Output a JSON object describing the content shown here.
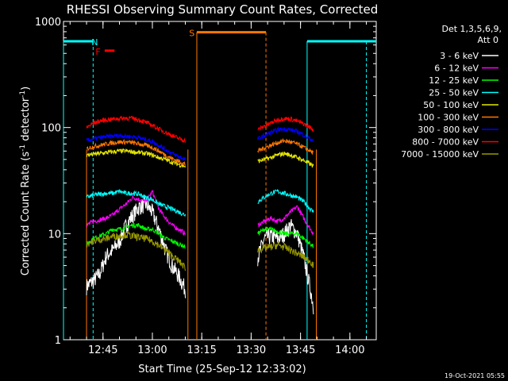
{
  "chart_data": {
    "type": "line",
    "title": "RHESSI Observing Summary Count Rates, Corrected",
    "xlabel": "Start Time (25-Sep-12 12:33:02)",
    "ylabel_main": "Corrected Count Rate (s",
    "ylabel_sup1": "-1",
    "ylabel_mid": " detector",
    "ylabel_sup2": "-1",
    "ylabel_end": ")",
    "y_scale": "log",
    "ylim": [
      1,
      1000
    ],
    "y_ticks": [
      {
        "value": 1,
        "label": "1"
      },
      {
        "value": 10,
        "label": "10"
      },
      {
        "value": 100,
        "label": "100"
      },
      {
        "value": 1000,
        "label": "1000"
      }
    ],
    "xlim_minutes": [
      0,
      95
    ],
    "x_ticks": [
      {
        "t": 12,
        "label": "12:45"
      },
      {
        "t": 27,
        "label": "13:00"
      },
      {
        "t": 42,
        "label": "13:15"
      },
      {
        "t": 57,
        "label": "13:30"
      },
      {
        "t": 72,
        "label": "13:45"
      },
      {
        "t": 87,
        "label": "14:00"
      }
    ],
    "legend_header": [
      "Det 1,3,5,6,9,",
      "Att 0"
    ],
    "legend_position": "right",
    "series": [
      {
        "name": "3 - 6 keV",
        "color": "#ffffff",
        "seg1": [
          [
            7,
            3.2
          ],
          [
            9,
            3.6
          ],
          [
            11,
            4.2
          ],
          [
            13,
            6.2
          ],
          [
            15,
            7
          ],
          [
            17,
            8.5
          ],
          [
            19,
            12
          ],
          [
            21,
            15
          ],
          [
            23,
            18
          ],
          [
            25,
            19
          ],
          [
            27,
            16
          ],
          [
            29,
            11
          ],
          [
            31,
            7
          ],
          [
            33,
            5
          ],
          [
            35,
            4
          ],
          [
            37,
            3
          ]
        ],
        "seg2": [
          [
            59,
            6
          ],
          [
            61,
            9
          ],
          [
            63,
            9.5
          ],
          [
            65,
            9
          ],
          [
            67,
            10
          ],
          [
            69,
            12
          ],
          [
            71,
            10
          ],
          [
            73,
            6
          ],
          [
            75,
            3
          ],
          [
            76,
            2
          ]
        ]
      },
      {
        "name": "6 - 12 keV",
        "color": "#ff00ff",
        "seg1": [
          [
            7,
            12
          ],
          [
            9,
            13
          ],
          [
            11,
            13.5
          ],
          [
            13,
            14
          ],
          [
            15,
            15
          ],
          [
            17,
            17
          ],
          [
            19,
            19
          ],
          [
            21,
            22
          ],
          [
            23,
            21
          ],
          [
            25,
            20
          ],
          [
            27,
            25
          ],
          [
            29,
            17
          ],
          [
            31,
            14
          ],
          [
            33,
            12
          ],
          [
            35,
            11
          ],
          [
            37,
            10
          ]
        ],
        "seg2": [
          [
            59,
            12
          ],
          [
            61,
            13
          ],
          [
            63,
            14
          ],
          [
            65,
            13
          ],
          [
            67,
            14
          ],
          [
            69,
            16
          ],
          [
            71,
            18
          ],
          [
            73,
            14
          ],
          [
            75,
            11
          ],
          [
            76,
            10
          ]
        ]
      },
      {
        "name": "12 - 25 keV",
        "color": "#00ff00",
        "seg1": [
          [
            7,
            8
          ],
          [
            9,
            9
          ],
          [
            11,
            9.5
          ],
          [
            13,
            10
          ],
          [
            15,
            11
          ],
          [
            17,
            11
          ],
          [
            19,
            11.5
          ],
          [
            21,
            12
          ],
          [
            23,
            12
          ],
          [
            25,
            11
          ],
          [
            27,
            11
          ],
          [
            29,
            10
          ],
          [
            31,
            9
          ],
          [
            33,
            8.5
          ],
          [
            35,
            8
          ],
          [
            37,
            7.5
          ]
        ],
        "seg2": [
          [
            59,
            10
          ],
          [
            61,
            11
          ],
          [
            63,
            11
          ],
          [
            65,
            10.5
          ],
          [
            67,
            10
          ],
          [
            69,
            10
          ],
          [
            71,
            10
          ],
          [
            73,
            9
          ],
          [
            75,
            8
          ],
          [
            76,
            7.5
          ]
        ]
      },
      {
        "name": "25 - 50 keV",
        "color": "#00ffff",
        "seg1": [
          [
            7,
            22
          ],
          [
            9,
            23
          ],
          [
            11,
            23.5
          ],
          [
            13,
            24
          ],
          [
            15,
            24
          ],
          [
            17,
            25
          ],
          [
            19,
            24
          ],
          [
            21,
            24
          ],
          [
            23,
            23.5
          ],
          [
            25,
            22
          ],
          [
            27,
            21
          ],
          [
            29,
            19
          ],
          [
            31,
            18
          ],
          [
            33,
            17
          ],
          [
            35,
            16
          ],
          [
            37,
            15
          ]
        ],
        "seg2": [
          [
            59,
            20
          ],
          [
            61,
            22
          ],
          [
            63,
            24
          ],
          [
            65,
            25
          ],
          [
            67,
            24
          ],
          [
            69,
            23
          ],
          [
            71,
            22
          ],
          [
            73,
            20
          ],
          [
            75,
            17
          ],
          [
            76,
            16
          ]
        ]
      },
      {
        "name": "50 - 100 keV",
        "color": "#e6e600",
        "seg1": [
          [
            7,
            55
          ],
          [
            9,
            56
          ],
          [
            11,
            57
          ],
          [
            13,
            58
          ],
          [
            15,
            59
          ],
          [
            17,
            60
          ],
          [
            19,
            60
          ],
          [
            21,
            59
          ],
          [
            23,
            58
          ],
          [
            25,
            57
          ],
          [
            27,
            55
          ],
          [
            29,
            52
          ],
          [
            31,
            50
          ],
          [
            33,
            47
          ],
          [
            35,
            45
          ],
          [
            37,
            43
          ]
        ],
        "seg2": [
          [
            59,
            48
          ],
          [
            61,
            50
          ],
          [
            63,
            52
          ],
          [
            65,
            55
          ],
          [
            67,
            57
          ],
          [
            69,
            55
          ],
          [
            71,
            52
          ],
          [
            73,
            49
          ],
          [
            75,
            45
          ],
          [
            76,
            43
          ]
        ]
      },
      {
        "name": "100 - 300 keV",
        "color": "#ff7700",
        "seg1": [
          [
            7,
            63
          ],
          [
            9,
            66
          ],
          [
            11,
            68
          ],
          [
            13,
            70
          ],
          [
            15,
            72
          ],
          [
            17,
            73
          ],
          [
            19,
            73
          ],
          [
            21,
            72
          ],
          [
            23,
            70
          ],
          [
            25,
            68
          ],
          [
            27,
            65
          ],
          [
            29,
            60
          ],
          [
            31,
            55
          ],
          [
            33,
            51
          ],
          [
            35,
            48
          ],
          [
            37,
            45
          ]
        ],
        "seg2": [
          [
            59,
            60
          ],
          [
            61,
            64
          ],
          [
            63,
            68
          ],
          [
            65,
            72
          ],
          [
            67,
            75
          ],
          [
            69,
            73
          ],
          [
            71,
            70
          ],
          [
            73,
            65
          ],
          [
            75,
            60
          ],
          [
            76,
            57
          ]
        ]
      },
      {
        "name": "300 - 800 keV",
        "color": "#0000ff",
        "seg1": [
          [
            7,
            75
          ],
          [
            9,
            78
          ],
          [
            11,
            80
          ],
          [
            13,
            82
          ],
          [
            15,
            83
          ],
          [
            17,
            84
          ],
          [
            19,
            83
          ],
          [
            21,
            82
          ],
          [
            23,
            80
          ],
          [
            25,
            77
          ],
          [
            27,
            74
          ],
          [
            29,
            68
          ],
          [
            31,
            62
          ],
          [
            33,
            57
          ],
          [
            35,
            53
          ],
          [
            37,
            50
          ]
        ],
        "seg2": [
          [
            59,
            78
          ],
          [
            61,
            84
          ],
          [
            63,
            90
          ],
          [
            65,
            95
          ],
          [
            67,
            97
          ],
          [
            69,
            95
          ],
          [
            71,
            92
          ],
          [
            73,
            85
          ],
          [
            75,
            78
          ],
          [
            76,
            75
          ]
        ]
      },
      {
        "name": "800 - 7000 keV",
        "color": "#ff0000",
        "seg1": [
          [
            7,
            100
          ],
          [
            9,
            110
          ],
          [
            11,
            115
          ],
          [
            13,
            118
          ],
          [
            15,
            120
          ],
          [
            17,
            122
          ],
          [
            19,
            123
          ],
          [
            21,
            122
          ],
          [
            23,
            118
          ],
          [
            25,
            112
          ],
          [
            27,
            105
          ],
          [
            29,
            97
          ],
          [
            31,
            90
          ],
          [
            33,
            84
          ],
          [
            35,
            79
          ],
          [
            37,
            75
          ]
        ],
        "seg2": [
          [
            59,
            95
          ],
          [
            61,
            103
          ],
          [
            63,
            110
          ],
          [
            65,
            118
          ],
          [
            67,
            122
          ],
          [
            69,
            120
          ],
          [
            71,
            115
          ],
          [
            73,
            108
          ],
          [
            75,
            100
          ],
          [
            76,
            95
          ]
        ]
      },
      {
        "name": "7000 - 15000 keV",
        "color": "#999900",
        "seg1": [
          [
            7,
            8
          ],
          [
            9,
            8.5
          ],
          [
            11,
            8.8
          ],
          [
            13,
            9
          ],
          [
            15,
            9.5
          ],
          [
            17,
            9.5
          ],
          [
            19,
            9.8
          ],
          [
            21,
            9.5
          ],
          [
            23,
            9.2
          ],
          [
            25,
            9
          ],
          [
            27,
            8.5
          ],
          [
            29,
            7.8
          ],
          [
            31,
            7
          ],
          [
            33,
            6.2
          ],
          [
            35,
            5.5
          ],
          [
            37,
            4.8
          ]
        ],
        "seg2": [
          [
            59,
            7
          ],
          [
            61,
            7.3
          ],
          [
            63,
            7.5
          ],
          [
            65,
            7.8
          ],
          [
            67,
            7.5
          ],
          [
            69,
            7
          ],
          [
            71,
            6.5
          ],
          [
            73,
            6
          ],
          [
            75,
            5.5
          ],
          [
            76,
            5
          ]
        ]
      }
    ],
    "flag_bars": [
      {
        "label": "",
        "color": "#00ffff",
        "y": 650,
        "t_start": 0,
        "t_end": 9
      },
      {
        "label": "N",
        "color": "#00ffff",
        "y": 650,
        "t_start": 9,
        "t_end": 9,
        "label_at": 9.5
      },
      {
        "label": "",
        "color": "#00ffff",
        "y": 650,
        "t_start": 74,
        "t_end": 95
      },
      {
        "label": "F",
        "color": "#ff0000",
        "y": 530,
        "t_start": 12.5,
        "t_end": 15.5,
        "label_at": 10.5
      },
      {
        "label": "S",
        "color": "#ff7700",
        "y": 790,
        "t_start": 40.5,
        "t_end": 61.5,
        "label_at": 39
      }
    ],
    "vertical_lines": [
      {
        "t": 7,
        "color": "#ff7700",
        "style": "solid"
      },
      {
        "t": 9,
        "color": "#00ffff",
        "style": "dashed"
      },
      {
        "t": 37.8,
        "color": "#ff7700",
        "style": "solid"
      },
      {
        "t": 40.5,
        "color": "#ff7700",
        "style": "solid"
      },
      {
        "t": 61.5,
        "color": "#ff7700",
        "style": "dashed"
      },
      {
        "t": 74,
        "color": "#00ffff",
        "style": "solid"
      },
      {
        "t": 76.8,
        "color": "#ff7700",
        "style": "solid"
      },
      {
        "t": 92,
        "color": "#00ffff",
        "style": "dashed"
      },
      {
        "t": 0,
        "color": "#00ffff",
        "style": "solid"
      }
    ],
    "footer_date": "19-Oct-2021 05:55"
  }
}
